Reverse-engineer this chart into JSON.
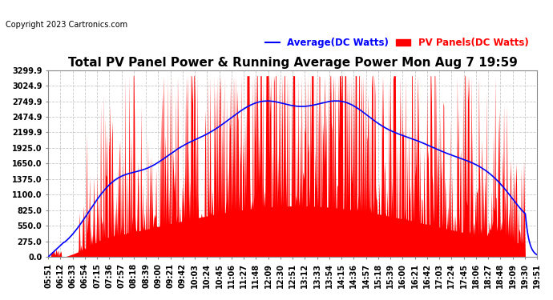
{
  "title": "Total PV Panel Power & Running Average Power Mon Aug 7 19:59",
  "copyright": "Copyright 2023 Cartronics.com",
  "legend_avg": "Average(DC Watts)",
  "legend_pv": "PV Panels(DC Watts)",
  "background_color": "#ffffff",
  "plot_bg_color": "#ffffff",
  "grid_color": "#bbbbbb",
  "pv_color": "#ff0000",
  "avg_color": "#0000ff",
  "ylim": [
    0,
    3299.9
  ],
  "yticks": [
    0.0,
    275.0,
    550.0,
    825.0,
    1100.0,
    1375.0,
    1650.0,
    1925.0,
    2199.9,
    2474.9,
    2749.9,
    3024.9,
    3299.9
  ],
  "xtick_labels": [
    "05:51",
    "06:12",
    "06:33",
    "06:54",
    "07:15",
    "07:36",
    "07:57",
    "08:18",
    "08:39",
    "09:00",
    "09:21",
    "09:42",
    "10:03",
    "10:24",
    "10:45",
    "11:06",
    "11:27",
    "11:48",
    "12:09",
    "12:30",
    "12:51",
    "13:12",
    "13:33",
    "13:54",
    "14:15",
    "14:36",
    "14:57",
    "15:18",
    "15:39",
    "16:00",
    "16:21",
    "16:42",
    "17:03",
    "17:24",
    "17:45",
    "18:06",
    "18:27",
    "18:48",
    "19:09",
    "19:30",
    "19:51"
  ],
  "title_fontsize": 11,
  "copyright_fontsize": 7,
  "tick_fontsize": 7,
  "legend_fontsize": 8.5,
  "n_dense": 840
}
